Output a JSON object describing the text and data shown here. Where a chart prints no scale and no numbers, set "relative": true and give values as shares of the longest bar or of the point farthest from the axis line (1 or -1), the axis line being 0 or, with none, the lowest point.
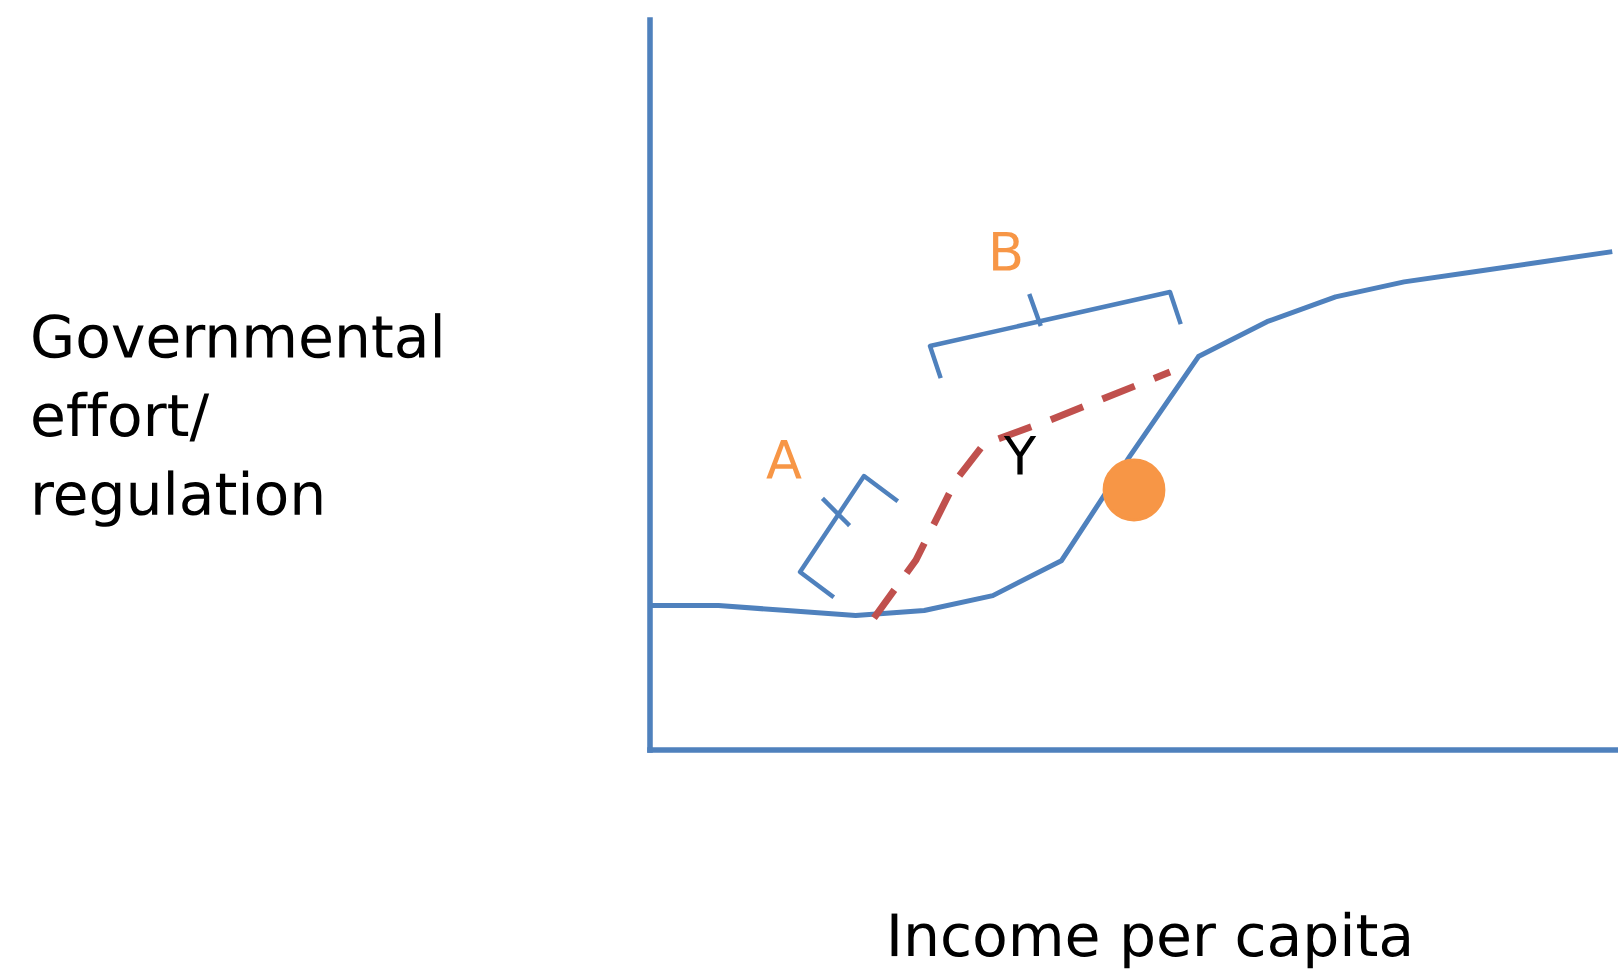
{
  "chart_data": {
    "type": "line",
    "relative": true,
    "xlabel": "Income per capita",
    "ylabel": "Governmental\neffort/\nregulation",
    "categories": [
      null,
      null,
      null,
      null,
      null,
      null,
      null,
      null,
      null,
      null,
      null,
      null,
      null,
      null,
      null
    ],
    "series": [
      {
        "color": "#4f81bd",
        "values": [
          0.29,
          0.29,
          0.28,
          0.27,
          0.28,
          0.31,
          0.38,
          0.59,
          0.79,
          0.86,
          0.91,
          0.94,
          0.96,
          0.98,
          1
        ]
      }
    ],
    "annotations": [
      "A",
      "B",
      "Y"
    ],
    "grid": false
  }
}
